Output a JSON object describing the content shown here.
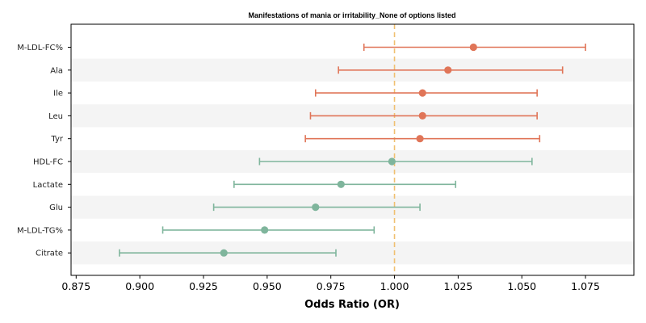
{
  "chart_data": {
    "type": "forest",
    "title": "Manifestations of mania or irritability_None of options listed",
    "xlabel": "Odds Ratio (OR)",
    "xlim": [
      0.873,
      1.094
    ],
    "xticks": [
      "0.875",
      "0.900",
      "0.925",
      "0.950",
      "0.975",
      "1.000",
      "1.025",
      "1.050",
      "1.075"
    ],
    "reference_line": 1.0,
    "grid": false,
    "colors": {
      "positive": "#e07558",
      "negative": "#7fb59c",
      "reference": "#f0c070",
      "band": "#f4f4f4"
    },
    "rows": [
      {
        "label": "M-LDL-FC%",
        "or": 1.031,
        "lower": 0.988,
        "upper": 1.075,
        "group": "positive"
      },
      {
        "label": "Ala",
        "or": 1.021,
        "lower": 0.978,
        "upper": 1.066,
        "group": "positive"
      },
      {
        "label": "Ile",
        "or": 1.011,
        "lower": 0.969,
        "upper": 1.056,
        "group": "positive"
      },
      {
        "label": "Leu",
        "or": 1.011,
        "lower": 0.967,
        "upper": 1.056,
        "group": "positive"
      },
      {
        "label": "Tyr",
        "or": 1.01,
        "lower": 0.965,
        "upper": 1.057,
        "group": "positive"
      },
      {
        "label": "HDL-FC",
        "or": 0.999,
        "lower": 0.947,
        "upper": 1.054,
        "group": "negative"
      },
      {
        "label": "Lactate",
        "or": 0.979,
        "lower": 0.937,
        "upper": 1.024,
        "group": "negative"
      },
      {
        "label": "Glu",
        "or": 0.969,
        "lower": 0.929,
        "upper": 1.01,
        "group": "negative"
      },
      {
        "label": "M-LDL-TG%",
        "or": 0.949,
        "lower": 0.909,
        "upper": 0.992,
        "group": "negative"
      },
      {
        "label": "Citrate",
        "or": 0.933,
        "lower": 0.892,
        "upper": 0.977,
        "group": "negative"
      }
    ]
  }
}
